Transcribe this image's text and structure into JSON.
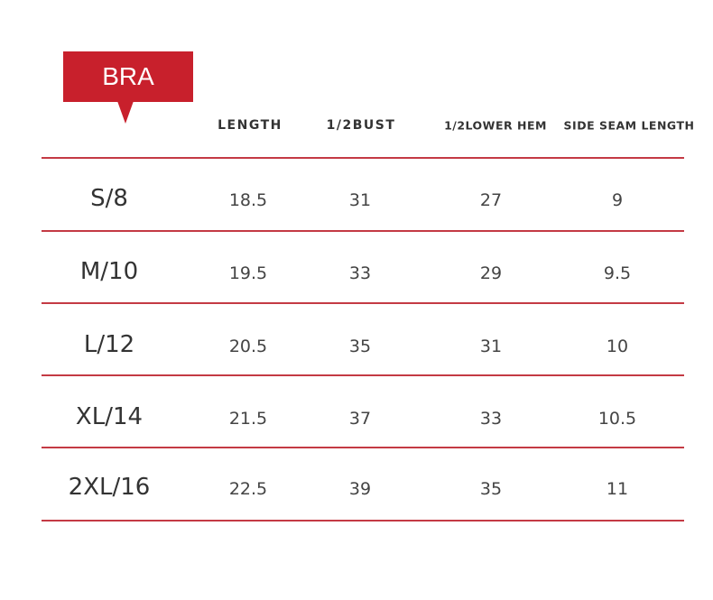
{
  "header": {
    "label": "BRA"
  },
  "table": {
    "columns": [
      "LENGTH",
      "1/2BUST",
      "1/2LOWER HEM",
      "SIDE SEAM LENGTH"
    ],
    "rows": [
      [
        "S/8",
        "18.5",
        "31",
        "27",
        "9"
      ],
      [
        "M/10",
        "19.5",
        "33",
        "29",
        "9.5"
      ],
      [
        "L/12",
        "20.5",
        "35",
        "31",
        "10"
      ],
      [
        "XL/14",
        "21.5",
        "37",
        "33",
        "10.5"
      ],
      [
        "2XL/16",
        "22.5",
        "39",
        "35",
        "11"
      ]
    ]
  }
}
